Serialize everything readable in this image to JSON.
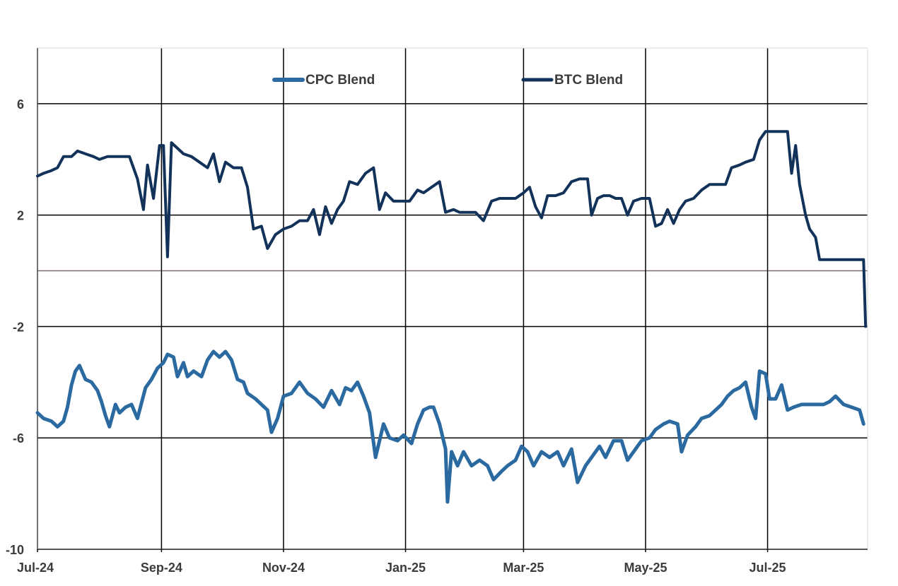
{
  "chart_data": {
    "type": "line",
    "title": "",
    "xlabel": "",
    "ylabel": "",
    "ylim": [
      -10,
      8
    ],
    "yticks": [
      6,
      2,
      -2,
      -6,
      -10
    ],
    "x_tick_labels": [
      "Jul-24",
      "Sep-24",
      "Nov-24",
      "Jan-25",
      "Mar-25",
      "May-25",
      "Jul-25"
    ],
    "x_tick_dates": [
      "2024-07-01",
      "2024-09-01",
      "2024-11-01",
      "2025-01-01",
      "2025-03-01",
      "2025-05-01",
      "2025-07-01"
    ],
    "xlim": [
      "2024-07-01",
      "2025-08-20"
    ],
    "grid": true,
    "zero_line": true,
    "legend_position": "top",
    "series": [
      {
        "name": "CPC Blend",
        "color": "#2b6aa0",
        "points": [
          [
            "2024-07-01",
            -5.1
          ],
          [
            "2024-07-04",
            -5.3
          ],
          [
            "2024-07-08",
            -5.4
          ],
          [
            "2024-07-11",
            -5.6
          ],
          [
            "2024-07-14",
            -5.4
          ],
          [
            "2024-07-16",
            -4.9
          ],
          [
            "2024-07-18",
            -4.1
          ],
          [
            "2024-07-20",
            -3.6
          ],
          [
            "2024-07-22",
            -3.4
          ],
          [
            "2024-07-25",
            -3.9
          ],
          [
            "2024-07-28",
            -4.0
          ],
          [
            "2024-07-31",
            -4.3
          ],
          [
            "2024-08-02",
            -4.7
          ],
          [
            "2024-08-04",
            -5.2
          ],
          [
            "2024-08-06",
            -5.6
          ],
          [
            "2024-08-09",
            -4.8
          ],
          [
            "2024-08-11",
            -5.1
          ],
          [
            "2024-08-14",
            -4.9
          ],
          [
            "2024-08-17",
            -4.8
          ],
          [
            "2024-08-20",
            -5.3
          ],
          [
            "2024-08-24",
            -4.2
          ],
          [
            "2024-08-27",
            -3.9
          ],
          [
            "2024-08-30",
            -3.5
          ],
          [
            "2024-09-02",
            -3.3
          ],
          [
            "2024-09-04",
            -3.0
          ],
          [
            "2024-09-07",
            -3.1
          ],
          [
            "2024-09-09",
            -3.8
          ],
          [
            "2024-09-12",
            -3.3
          ],
          [
            "2024-09-14",
            -3.8
          ],
          [
            "2024-09-17",
            -3.6
          ],
          [
            "2024-09-21",
            -3.8
          ],
          [
            "2024-09-24",
            -3.2
          ],
          [
            "2024-09-27",
            -2.9
          ],
          [
            "2024-09-30",
            -3.1
          ],
          [
            "2024-10-03",
            -2.9
          ],
          [
            "2024-10-06",
            -3.2
          ],
          [
            "2024-10-09",
            -3.9
          ],
          [
            "2024-10-12",
            -4.0
          ],
          [
            "2024-10-14",
            -4.4
          ],
          [
            "2024-10-18",
            -4.6
          ],
          [
            "2024-10-21",
            -4.8
          ],
          [
            "2024-10-24",
            -5.0
          ],
          [
            "2024-10-26",
            -5.8
          ],
          [
            "2024-10-29",
            -5.3
          ],
          [
            "2024-11-01",
            -4.5
          ],
          [
            "2024-11-05",
            -4.4
          ],
          [
            "2024-11-09",
            -4.0
          ],
          [
            "2024-11-13",
            -4.4
          ],
          [
            "2024-11-17",
            -4.6
          ],
          [
            "2024-11-21",
            -4.9
          ],
          [
            "2024-11-25",
            -4.3
          ],
          [
            "2024-11-29",
            -4.8
          ],
          [
            "2024-12-02",
            -4.2
          ],
          [
            "2024-12-05",
            -4.3
          ],
          [
            "2024-12-08",
            -4.0
          ],
          [
            "2024-12-11",
            -4.5
          ],
          [
            "2024-12-14",
            -5.1
          ],
          [
            "2024-12-17",
            -6.7
          ],
          [
            "2024-12-21",
            -5.5
          ],
          [
            "2024-12-24",
            -6.0
          ],
          [
            "2024-12-28",
            -6.1
          ],
          [
            "2024-12-31",
            -5.9
          ],
          [
            "2025-01-04",
            -6.2
          ],
          [
            "2025-01-07",
            -5.5
          ],
          [
            "2025-01-10",
            -5.0
          ],
          [
            "2025-01-13",
            -4.9
          ],
          [
            "2025-01-15",
            -4.9
          ],
          [
            "2025-01-18",
            -5.5
          ],
          [
            "2025-01-21",
            -6.4
          ],
          [
            "2025-01-22",
            -8.3
          ],
          [
            "2025-01-24",
            -6.5
          ],
          [
            "2025-01-27",
            -7.0
          ],
          [
            "2025-01-30",
            -6.5
          ],
          [
            "2025-02-03",
            -7.0
          ],
          [
            "2025-02-07",
            -6.8
          ],
          [
            "2025-02-11",
            -7.0
          ],
          [
            "2025-02-14",
            -7.5
          ],
          [
            "2025-02-18",
            -7.2
          ],
          [
            "2025-02-21",
            -7.0
          ],
          [
            "2025-02-25",
            -6.8
          ],
          [
            "2025-02-28",
            -6.3
          ],
          [
            "2025-03-03",
            -6.5
          ],
          [
            "2025-03-06",
            -7.0
          ],
          [
            "2025-03-10",
            -6.5
          ],
          [
            "2025-03-14",
            -6.7
          ],
          [
            "2025-03-18",
            -6.5
          ],
          [
            "2025-03-21",
            -7.0
          ],
          [
            "2025-03-25",
            -6.4
          ],
          [
            "2025-03-28",
            -7.6
          ],
          [
            "2025-04-01",
            -7.0
          ],
          [
            "2025-04-05",
            -6.6
          ],
          [
            "2025-04-08",
            -6.3
          ],
          [
            "2025-04-11",
            -6.7
          ],
          [
            "2025-04-15",
            -6.1
          ],
          [
            "2025-04-19",
            -6.1
          ],
          [
            "2025-04-22",
            -6.8
          ],
          [
            "2025-04-25",
            -6.5
          ],
          [
            "2025-04-29",
            -6.1
          ],
          [
            "2025-05-03",
            -6.0
          ],
          [
            "2025-05-06",
            -5.7
          ],
          [
            "2025-05-10",
            -5.5
          ],
          [
            "2025-05-13",
            -5.4
          ],
          [
            "2025-05-17",
            -5.5
          ],
          [
            "2025-05-19",
            -6.5
          ],
          [
            "2025-05-22",
            -5.9
          ],
          [
            "2025-05-26",
            -5.6
          ],
          [
            "2025-05-29",
            -5.3
          ],
          [
            "2025-06-02",
            -5.2
          ],
          [
            "2025-06-05",
            -5.0
          ],
          [
            "2025-06-08",
            -4.8
          ],
          [
            "2025-06-11",
            -4.5
          ],
          [
            "2025-06-14",
            -4.3
          ],
          [
            "2025-06-17",
            -4.2
          ],
          [
            "2025-06-20",
            -4.0
          ],
          [
            "2025-06-23",
            -4.9
          ],
          [
            "2025-06-25",
            -5.3
          ],
          [
            "2025-06-27",
            -3.6
          ],
          [
            "2025-06-30",
            -3.7
          ],
          [
            "2025-07-02",
            -4.6
          ],
          [
            "2025-07-05",
            -4.6
          ],
          [
            "2025-07-08",
            -4.1
          ],
          [
            "2025-07-11",
            -5.0
          ],
          [
            "2025-07-14",
            -4.9
          ],
          [
            "2025-07-18",
            -4.8
          ],
          [
            "2025-07-22",
            -4.8
          ],
          [
            "2025-07-26",
            -4.8
          ],
          [
            "2025-07-29",
            -4.8
          ],
          [
            "2025-08-01",
            -4.7
          ],
          [
            "2025-08-04",
            -4.5
          ],
          [
            "2025-08-08",
            -4.8
          ],
          [
            "2025-08-12",
            -4.9
          ],
          [
            "2025-08-16",
            -5.0
          ],
          [
            "2025-08-18",
            -5.5
          ]
        ]
      },
      {
        "name": "BTC Blend",
        "color": "#13325a",
        "points": [
          [
            "2024-07-01",
            3.4
          ],
          [
            "2024-07-04",
            3.5
          ],
          [
            "2024-07-08",
            3.6
          ],
          [
            "2024-07-11",
            3.7
          ],
          [
            "2024-07-14",
            4.1
          ],
          [
            "2024-07-18",
            4.1
          ],
          [
            "2024-07-21",
            4.3
          ],
          [
            "2024-07-25",
            4.2
          ],
          [
            "2024-07-29",
            4.1
          ],
          [
            "2024-08-01",
            4.0
          ],
          [
            "2024-08-05",
            4.1
          ],
          [
            "2024-08-09",
            4.1
          ],
          [
            "2024-08-12",
            4.1
          ],
          [
            "2024-08-16",
            4.1
          ],
          [
            "2024-08-20",
            3.3
          ],
          [
            "2024-08-23",
            2.2
          ],
          [
            "2024-08-25",
            3.8
          ],
          [
            "2024-08-28",
            2.6
          ],
          [
            "2024-08-31",
            4.5
          ],
          [
            "2024-09-02",
            4.5
          ],
          [
            "2024-09-04",
            0.5
          ],
          [
            "2024-09-06",
            4.6
          ],
          [
            "2024-09-09",
            4.4
          ],
          [
            "2024-09-12",
            4.2
          ],
          [
            "2024-09-16",
            4.1
          ],
          [
            "2024-09-20",
            3.9
          ],
          [
            "2024-09-24",
            3.7
          ],
          [
            "2024-09-27",
            4.2
          ],
          [
            "2024-09-30",
            3.2
          ],
          [
            "2024-10-03",
            3.9
          ],
          [
            "2024-10-07",
            3.7
          ],
          [
            "2024-10-11",
            3.7
          ],
          [
            "2024-10-14",
            3.0
          ],
          [
            "2024-10-17",
            1.5
          ],
          [
            "2024-10-21",
            1.6
          ],
          [
            "2024-10-24",
            0.8
          ],
          [
            "2024-10-28",
            1.3
          ],
          [
            "2024-11-01",
            1.5
          ],
          [
            "2024-11-05",
            1.6
          ],
          [
            "2024-11-09",
            1.8
          ],
          [
            "2024-11-13",
            1.8
          ],
          [
            "2024-11-16",
            2.2
          ],
          [
            "2024-11-19",
            1.3
          ],
          [
            "2024-11-22",
            2.3
          ],
          [
            "2024-11-25",
            1.7
          ],
          [
            "2024-11-28",
            2.2
          ],
          [
            "2024-12-01",
            2.5
          ],
          [
            "2024-12-04",
            3.2
          ],
          [
            "2024-12-08",
            3.1
          ],
          [
            "2024-12-12",
            3.5
          ],
          [
            "2024-12-16",
            3.7
          ],
          [
            "2024-12-19",
            2.2
          ],
          [
            "2024-12-22",
            2.8
          ],
          [
            "2024-12-26",
            2.5
          ],
          [
            "2024-12-30",
            2.5
          ],
          [
            "2025-01-03",
            2.5
          ],
          [
            "2025-01-07",
            2.9
          ],
          [
            "2025-01-10",
            2.8
          ],
          [
            "2025-01-14",
            3.0
          ],
          [
            "2025-01-18",
            3.2
          ],
          [
            "2025-01-21",
            2.1
          ],
          [
            "2025-01-25",
            2.2
          ],
          [
            "2025-01-28",
            2.1
          ],
          [
            "2025-02-01",
            2.1
          ],
          [
            "2025-02-05",
            2.1
          ],
          [
            "2025-02-09",
            1.8
          ],
          [
            "2025-02-13",
            2.5
          ],
          [
            "2025-02-17",
            2.6
          ],
          [
            "2025-02-21",
            2.6
          ],
          [
            "2025-02-25",
            2.6
          ],
          [
            "2025-03-01",
            2.8
          ],
          [
            "2025-03-04",
            3.0
          ],
          [
            "2025-03-07",
            2.3
          ],
          [
            "2025-03-10",
            1.9
          ],
          [
            "2025-03-13",
            2.7
          ],
          [
            "2025-03-17",
            2.7
          ],
          [
            "2025-03-21",
            2.8
          ],
          [
            "2025-03-25",
            3.2
          ],
          [
            "2025-03-29",
            3.3
          ],
          [
            "2025-04-02",
            3.3
          ],
          [
            "2025-04-04",
            2.0
          ],
          [
            "2025-04-07",
            2.6
          ],
          [
            "2025-04-10",
            2.7
          ],
          [
            "2025-04-13",
            2.7
          ],
          [
            "2025-04-16",
            2.6
          ],
          [
            "2025-04-19",
            2.6
          ],
          [
            "2025-04-22",
            2.0
          ],
          [
            "2025-04-25",
            2.5
          ],
          [
            "2025-04-29",
            2.6
          ],
          [
            "2025-05-03",
            2.6
          ],
          [
            "2025-05-06",
            1.6
          ],
          [
            "2025-05-09",
            1.7
          ],
          [
            "2025-05-12",
            2.2
          ],
          [
            "2025-05-15",
            1.7
          ],
          [
            "2025-05-18",
            2.2
          ],
          [
            "2025-05-21",
            2.5
          ],
          [
            "2025-05-25",
            2.6
          ],
          [
            "2025-05-29",
            2.9
          ],
          [
            "2025-06-02",
            3.1
          ],
          [
            "2025-06-06",
            3.1
          ],
          [
            "2025-06-10",
            3.1
          ],
          [
            "2025-06-13",
            3.7
          ],
          [
            "2025-06-17",
            3.8
          ],
          [
            "2025-06-20",
            3.9
          ],
          [
            "2025-06-24",
            4.0
          ],
          [
            "2025-06-27",
            4.7
          ],
          [
            "2025-06-30",
            5.0
          ],
          [
            "2025-07-04",
            5.0
          ],
          [
            "2025-07-08",
            5.0
          ],
          [
            "2025-07-11",
            5.0
          ],
          [
            "2025-07-13",
            3.5
          ],
          [
            "2025-07-15",
            4.5
          ],
          [
            "2025-07-17",
            3.1
          ],
          [
            "2025-07-20",
            2.0
          ],
          [
            "2025-07-22",
            1.5
          ],
          [
            "2025-07-25",
            1.2
          ],
          [
            "2025-07-27",
            0.4
          ],
          [
            "2025-08-01",
            0.4
          ],
          [
            "2025-08-08",
            0.4
          ],
          [
            "2025-08-15",
            0.4
          ],
          [
            "2025-08-18",
            0.4
          ],
          [
            "2025-08-19",
            -2.0
          ]
        ]
      }
    ]
  }
}
